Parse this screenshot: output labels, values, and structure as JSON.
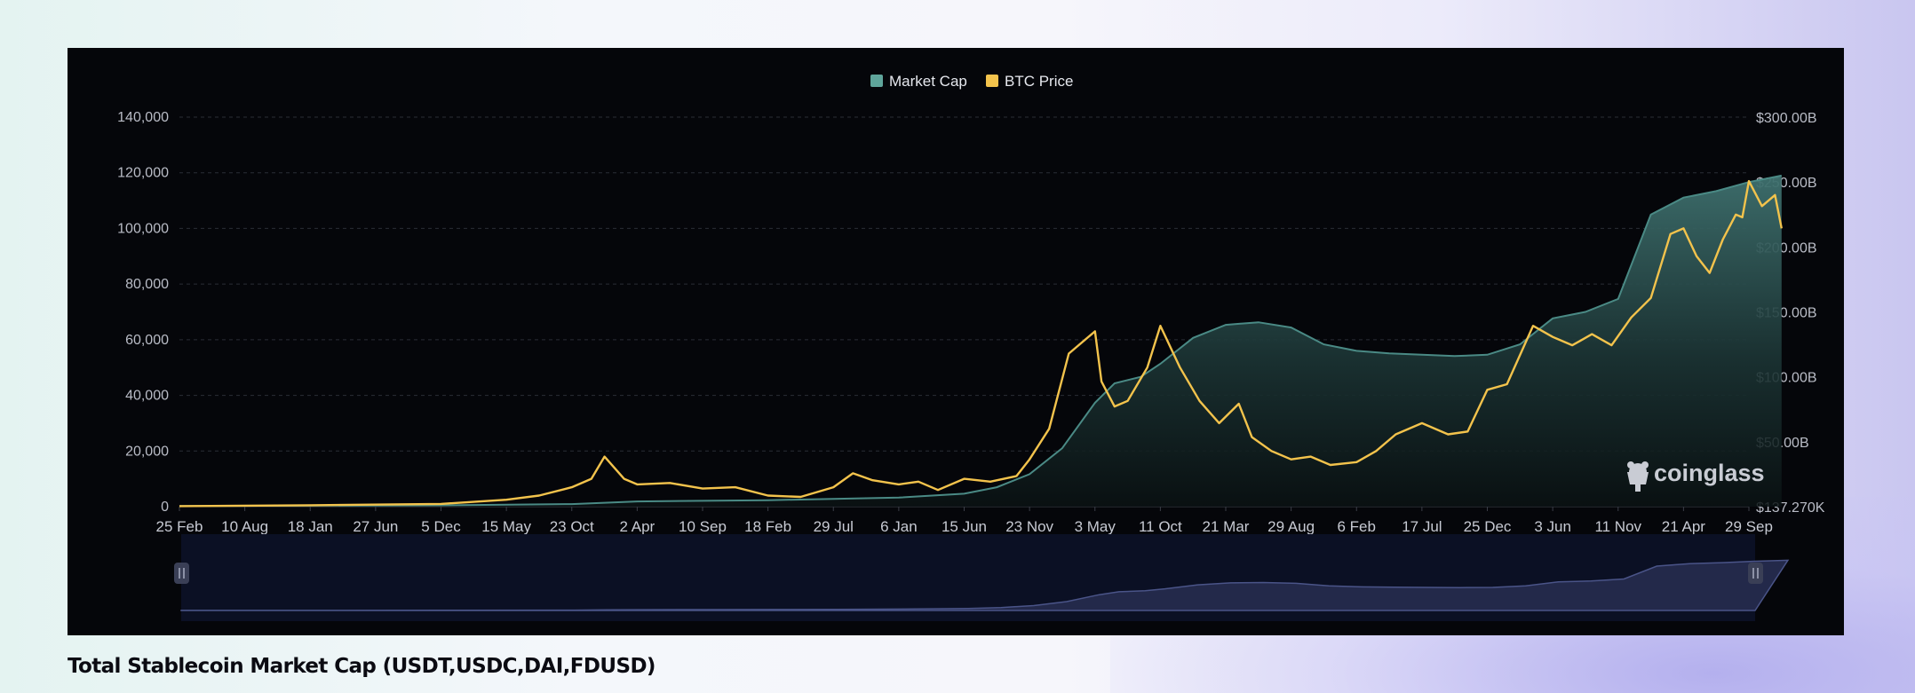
{
  "page": {
    "caption": "Total Stablecoin Market Cap (USDT,USDC,DAI,FDUSD)"
  },
  "watermark": {
    "text": "coinglass",
    "icon": "coinglass-logo-icon"
  },
  "colors": {
    "panel_bg": "#05060a",
    "market_cap": "#4a8a85",
    "market_cap_legend": "#5fa59b",
    "btc_price": "#f3c34c",
    "grid": "#2a2d36",
    "navigator_fill": "#23294a",
    "navigator_bg": "#0b1024"
  },
  "chart_data": {
    "type": "area",
    "title": "",
    "xlabel": "",
    "ylabel": "",
    "legend": {
      "placement": "top-center",
      "items": [
        {
          "label": "Market Cap",
          "color": "#5fa59b"
        },
        {
          "label": "BTC Price",
          "color": "#f3c34c"
        }
      ]
    },
    "grid": true,
    "x_ticks": [
      "25 Feb",
      "10 Aug",
      "18 Jan",
      "27 Jun",
      "5 Dec",
      "15 May",
      "23 Oct",
      "2 Apr",
      "10 Sep",
      "18 Feb",
      "29 Jul",
      "6 Jan",
      "15 Jun",
      "23 Nov",
      "3 May",
      "11 Oct",
      "21 Mar",
      "29 Aug",
      "6 Feb",
      "17 Jul",
      "25 Dec",
      "3 Jun",
      "11 Nov",
      "21 Apr",
      "29 Sep"
    ],
    "y_left": {
      "ticks": [
        "0",
        "20,000",
        "40,000",
        "60,000",
        "80,000",
        "100,000",
        "120,000",
        "140,000"
      ],
      "tick_values": [
        0,
        20000,
        40000,
        60000,
        80000,
        100000,
        120000,
        140000
      ],
      "range": [
        0,
        140000
      ]
    },
    "y_right": {
      "ticks": [
        "$137.270K",
        "$50.00B",
        "$100.00B",
        "$150.00B",
        "$200.00B",
        "$250.00B",
        "$300.00B"
      ],
      "tick_values": [
        0,
        50,
        100,
        150,
        200,
        250,
        300
      ],
      "range": [
        0,
        300
      ]
    },
    "series": [
      {
        "name": "Market Cap",
        "axis": "right",
        "unit": "B USD",
        "style": "area",
        "x_index": [
          0,
          4,
          6,
          6.5,
          7,
          8,
          9,
          10,
          11,
          12,
          12.5,
          13,
          13.5,
          14,
          14.3,
          14.7,
          15,
          15.5,
          16,
          16.5,
          17,
          17.5,
          18,
          18.5,
          19,
          19.5,
          20,
          20.5,
          21,
          21.5,
          22,
          22.5,
          23,
          23.5,
          24,
          24.5
        ],
        "values": [
          0.5,
          1,
          2,
          3,
          4,
          4.5,
          5,
          6,
          7,
          10,
          15,
          25,
          45,
          80,
          95,
          100,
          110,
          130,
          140,
          142,
          138,
          125,
          120,
          118,
          117,
          116,
          117,
          125,
          145,
          150,
          160,
          225,
          238,
          243,
          250,
          255
        ]
      },
      {
        "name": "BTC Price",
        "axis": "left",
        "unit": "USD",
        "style": "line",
        "x_index": [
          0,
          2,
          4,
          5,
          5.5,
          6,
          6.3,
          6.5,
          6.8,
          7,
          7.5,
          8,
          8.5,
          9,
          9.5,
          10,
          10.3,
          10.6,
          11,
          11.3,
          11.6,
          12,
          12.4,
          12.8,
          13,
          13.3,
          13.6,
          14,
          14.1,
          14.3,
          14.5,
          14.8,
          15,
          15.3,
          15.6,
          15.9,
          16.2,
          16.4,
          16.7,
          17,
          17.3,
          17.6,
          18,
          18.3,
          18.6,
          19,
          19.4,
          19.7,
          20,
          20.3,
          20.7,
          21,
          21.3,
          21.6,
          21.9,
          22.2,
          22.5,
          22.8,
          23,
          23.2,
          23.4,
          23.6,
          23.8,
          23.9,
          24,
          24.2,
          24.4,
          24.5
        ],
        "values": [
          200,
          500,
          1000,
          2500,
          4000,
          7000,
          10000,
          18000,
          10000,
          8000,
          8500,
          6500,
          7000,
          4000,
          3500,
          7000,
          12000,
          9500,
          8000,
          9000,
          6000,
          10000,
          9000,
          11000,
          17000,
          28000,
          55000,
          63000,
          45000,
          36000,
          38000,
          50000,
          65000,
          50000,
          38000,
          30000,
          37000,
          25000,
          20000,
          17000,
          18000,
          15000,
          16000,
          20000,
          26000,
          30000,
          26000,
          27000,
          42000,
          44000,
          65000,
          61000,
          58000,
          62000,
          58000,
          68000,
          75000,
          98000,
          100000,
          90000,
          84000,
          96000,
          105000,
          104000,
          117000,
          108000,
          112000,
          100000
        ]
      }
    ]
  }
}
